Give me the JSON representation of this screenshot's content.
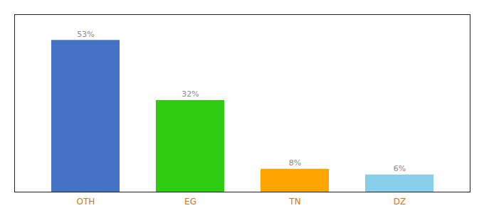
{
  "chart_data": {
    "type": "bar",
    "categories": [
      "OTH",
      "EG",
      "TN",
      "DZ"
    ],
    "values": [
      53,
      32,
      8,
      6
    ],
    "value_labels": [
      "53%",
      "32%",
      "8%",
      "6%"
    ],
    "data_labels": true,
    "colors": [
      "#4472C4",
      "#2ECC11",
      "#FFA500",
      "#87CEEB"
    ],
    "ylim": [
      0,
      62
    ],
    "grid": false,
    "tick_labels": "x"
  }
}
